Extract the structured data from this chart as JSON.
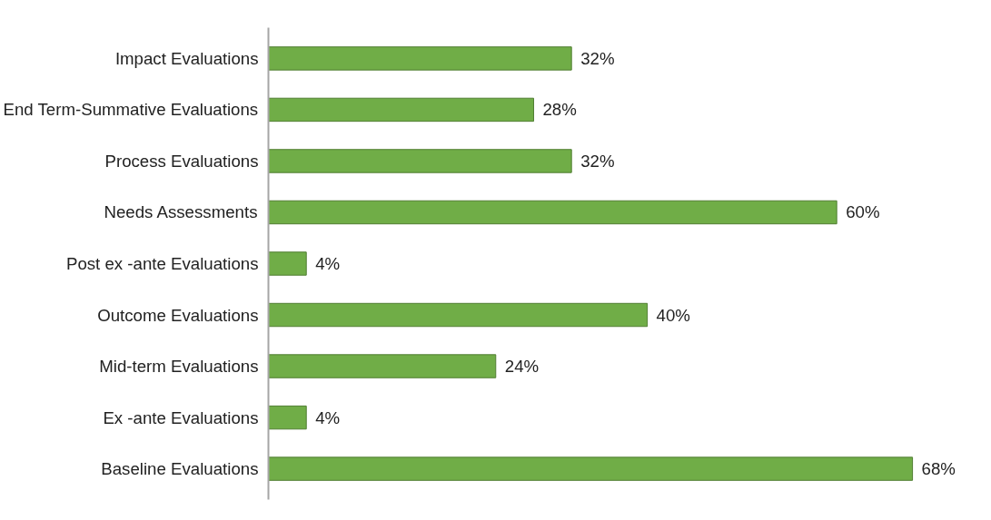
{
  "chart_data": {
    "type": "bar",
    "orientation": "horizontal",
    "categories": [
      "Impact Evaluations",
      "End Term-Summative Evaluations",
      "Process Evaluations",
      "Needs Assessments",
      "Post ex -ante Evaluations",
      "Outcome Evaluations",
      "Mid-term Evaluations",
      "Ex -ante Evaluations",
      "Baseline Evaluations"
    ],
    "values": [
      32,
      28,
      32,
      60,
      4,
      40,
      24,
      4,
      68
    ],
    "value_labels": [
      "32%",
      "28%",
      "32%",
      "60%",
      "4%",
      "40%",
      "24%",
      "4%",
      "68%"
    ],
    "color": "#70ad47"
  }
}
